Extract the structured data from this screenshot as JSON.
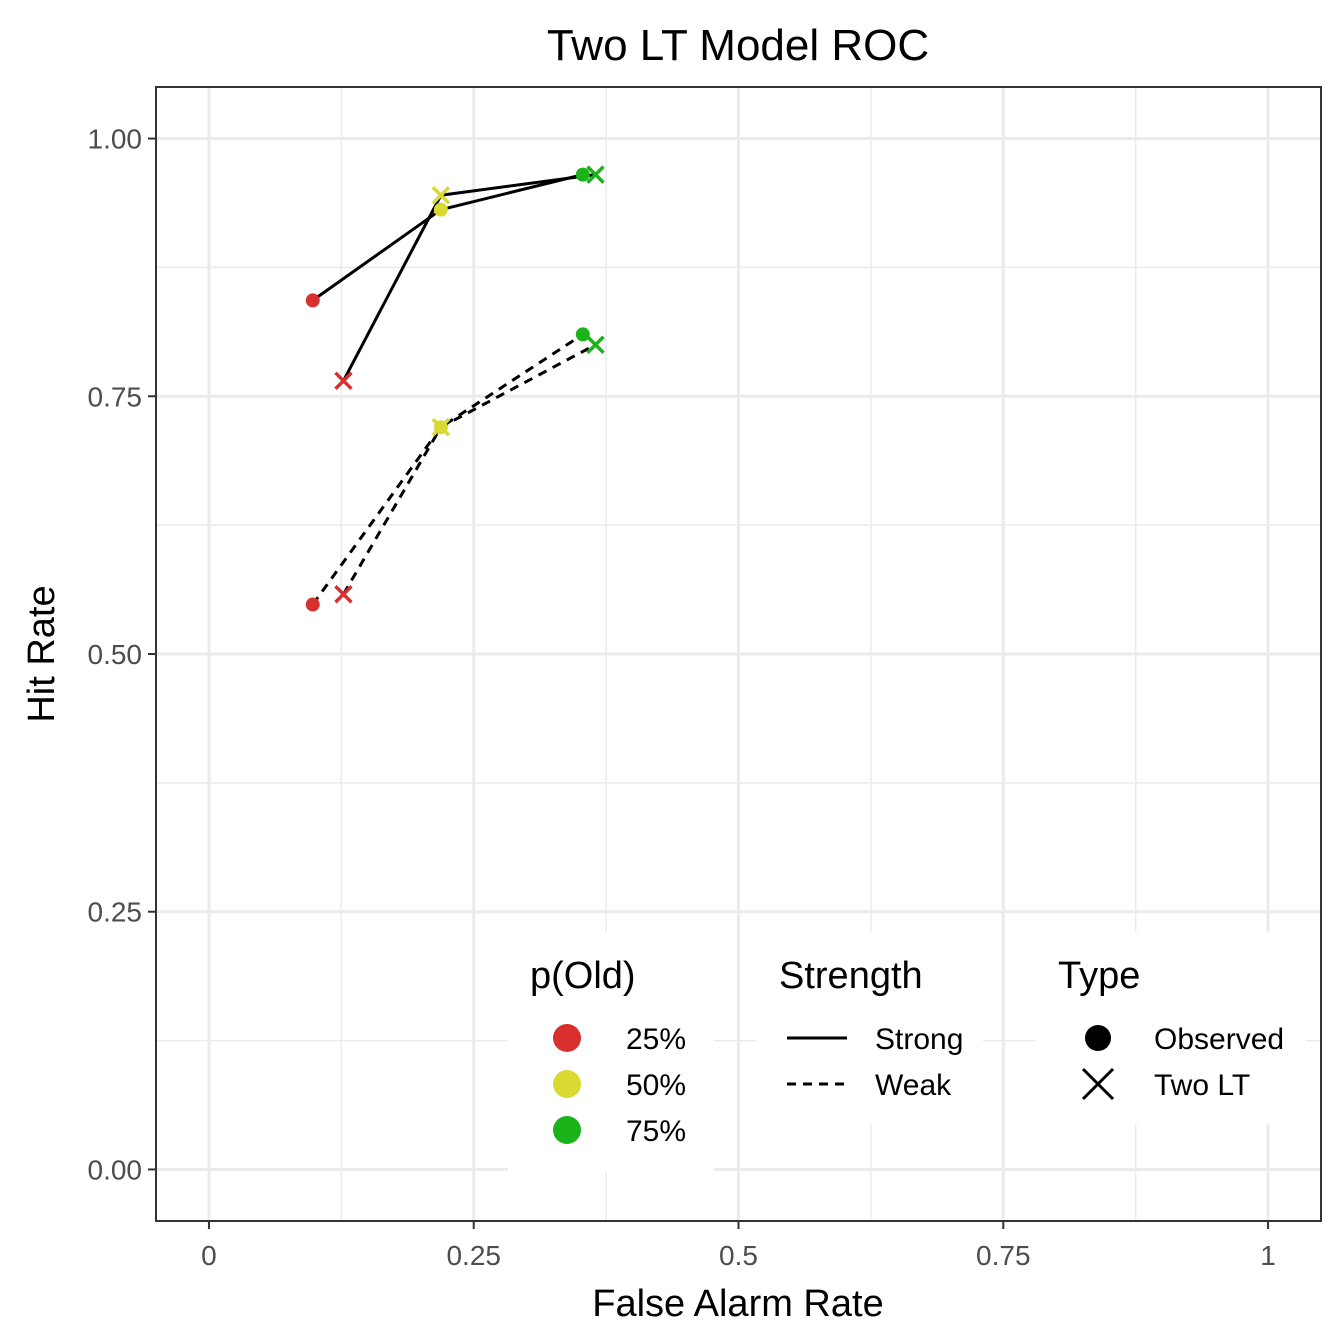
{
  "chart_data": {
    "type": "line",
    "title": "Two LT Model ROC",
    "xlabel": "False Alarm Rate",
    "ylabel": "Hit Rate",
    "xlim": [
      -0.05,
      1.05
    ],
    "ylim": [
      -0.05,
      1.05
    ],
    "x_ticks": [
      0,
      0.25,
      0.5,
      0.75,
      1
    ],
    "x_tick_labels": [
      "0",
      "0.25",
      "0.5",
      "0.75",
      "1"
    ],
    "y_ticks": [
      0,
      0.25,
      0.5,
      0.75,
      1
    ],
    "y_tick_labels": [
      "0.00",
      "0.25",
      "0.50",
      "0.75",
      "1.00"
    ],
    "grid": true,
    "colors": {
      "25%": "#d7302f",
      "50%": "#d9d934",
      "75%": "#1ab31a"
    },
    "series": [
      {
        "strength": "Strong",
        "type": "Observed",
        "points": [
          {
            "x": 0.098,
            "y": 0.843,
            "pold": "25%"
          },
          {
            "x": 0.219,
            "y": 0.931,
            "pold": "50%"
          },
          {
            "x": 0.353,
            "y": 0.965,
            "pold": "75%"
          }
        ]
      },
      {
        "strength": "Strong",
        "type": "Two LT",
        "points": [
          {
            "x": 0.127,
            "y": 0.765,
            "pold": "25%"
          },
          {
            "x": 0.219,
            "y": 0.945,
            "pold": "50%"
          },
          {
            "x": 0.365,
            "y": 0.965,
            "pold": "75%"
          }
        ]
      },
      {
        "strength": "Weak",
        "type": "Observed",
        "points": [
          {
            "x": 0.098,
            "y": 0.548,
            "pold": "25%"
          },
          {
            "x": 0.219,
            "y": 0.72,
            "pold": "50%"
          },
          {
            "x": 0.353,
            "y": 0.81,
            "pold": "75%"
          }
        ]
      },
      {
        "strength": "Weak",
        "type": "Two LT",
        "points": [
          {
            "x": 0.127,
            "y": 0.558,
            "pold": "25%"
          },
          {
            "x": 0.219,
            "y": 0.72,
            "pold": "50%"
          },
          {
            "x": 0.365,
            "y": 0.8,
            "pold": "75%"
          }
        ]
      }
    ],
    "legend": {
      "placement": "bottom-right",
      "groups": [
        {
          "title": "p(Old)",
          "kind": "color",
          "entries": [
            "25%",
            "50%",
            "75%"
          ]
        },
        {
          "title": "Strength",
          "kind": "linetype",
          "entries": [
            "Strong",
            "Weak"
          ]
        },
        {
          "title": "Type",
          "kind": "shape",
          "entries": [
            "Observed",
            "Two LT"
          ]
        }
      ]
    }
  }
}
